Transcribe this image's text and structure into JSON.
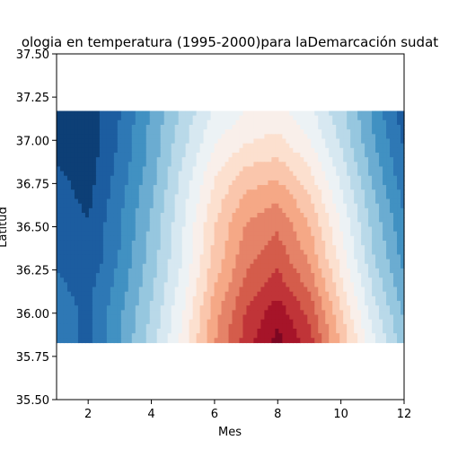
{
  "chart_data": {
    "type": "heatmap",
    "subtype": "filled-contour",
    "title": "ologia en temperatura (1995-2000)para laDemarcación sudat",
    "xlabel": "Mes",
    "ylabel": "Latitud",
    "xlim": [
      1,
      12
    ],
    "ylim": [
      35.5,
      37.5
    ],
    "x_ticks": [
      "2",
      "4",
      "6",
      "8",
      "10",
      "12"
    ],
    "x_tick_values": [
      2,
      4,
      6,
      8,
      10,
      12
    ],
    "y_ticks": [
      "35.50",
      "35.75",
      "36.00",
      "36.25",
      "36.50",
      "36.75",
      "37.00",
      "37.25",
      "37.50"
    ],
    "y_tick_values": [
      35.5,
      35.75,
      36.0,
      36.25,
      36.5,
      36.75,
      37.0,
      37.25,
      37.5
    ],
    "data_extent": {
      "x": [
        1,
        12
      ],
      "y": [
        35.83,
        37.17
      ]
    },
    "colormap": "RdBu_r",
    "colors": {
      "cold": "#0f4c8a",
      "neutral": "#f7f7f7",
      "hot": "#8b0a1f"
    },
    "months": [
      1,
      2,
      3,
      4,
      5,
      6,
      7,
      8,
      9,
      10,
      11,
      12
    ],
    "latitudes": [
      35.83,
      36.0,
      36.17,
      36.33,
      36.5,
      36.67,
      36.83,
      37.0,
      37.17
    ],
    "values": [
      [
        0.14,
        0.1,
        0.22,
        0.36,
        0.52,
        0.72,
        0.86,
        0.97,
        0.86,
        0.66,
        0.46,
        0.3
      ],
      [
        0.14,
        0.1,
        0.21,
        0.34,
        0.5,
        0.7,
        0.84,
        0.92,
        0.82,
        0.62,
        0.42,
        0.27
      ],
      [
        0.12,
        0.09,
        0.19,
        0.32,
        0.47,
        0.66,
        0.79,
        0.86,
        0.76,
        0.57,
        0.38,
        0.23
      ],
      [
        0.1,
        0.06,
        0.17,
        0.3,
        0.45,
        0.63,
        0.76,
        0.81,
        0.71,
        0.53,
        0.34,
        0.2
      ],
      [
        0.09,
        0.06,
        0.16,
        0.29,
        0.44,
        0.61,
        0.73,
        0.77,
        0.67,
        0.5,
        0.32,
        0.18
      ],
      [
        0.08,
        0.04,
        0.15,
        0.27,
        0.42,
        0.58,
        0.68,
        0.71,
        0.62,
        0.46,
        0.29,
        0.15
      ],
      [
        0.06,
        0.03,
        0.13,
        0.25,
        0.4,
        0.54,
        0.62,
        0.64,
        0.56,
        0.42,
        0.26,
        0.12
      ],
      [
        0.04,
        0.02,
        0.12,
        0.24,
        0.37,
        0.49,
        0.55,
        0.57,
        0.5,
        0.38,
        0.23,
        0.1
      ],
      [
        0.03,
        0.02,
        0.11,
        0.23,
        0.35,
        0.45,
        0.5,
        0.52,
        0.46,
        0.35,
        0.21,
        0.08
      ]
    ],
    "grid": false,
    "legend": "none"
  }
}
